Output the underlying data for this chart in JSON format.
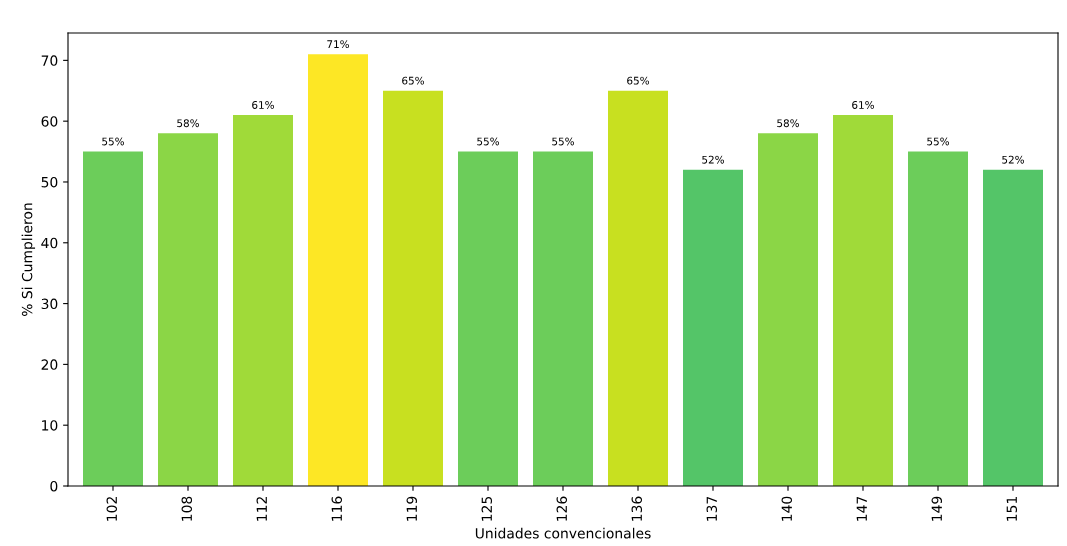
{
  "chart_data": {
    "type": "bar",
    "xlabel": "Unidades convencionales",
    "ylabel": "% Si Cumplieron",
    "categories": [
      "102",
      "108",
      "112",
      "116",
      "119",
      "125",
      "126",
      "136",
      "137",
      "140",
      "147",
      "149",
      "151"
    ],
    "values": [
      55,
      58,
      61,
      71,
      65,
      55,
      55,
      65,
      52,
      58,
      61,
      55,
      52
    ],
    "colors": [
      "#6ccd5a",
      "#8bd646",
      "#a0da39",
      "#fde725",
      "#c8e020",
      "#6ccd5a",
      "#6ccd5a",
      "#c8e020",
      "#54c568",
      "#8bd646",
      "#a0da39",
      "#6ccd5a",
      "#54c568"
    ],
    "value_labels": [
      "55%",
      "58%",
      "61%",
      "71%",
      "65%",
      "55%",
      "55%",
      "65%",
      "52%",
      "58%",
      "61%",
      "55%",
      "52%"
    ],
    "ylim": [
      0,
      74.5
    ],
    "yticks": [
      0,
      10,
      20,
      30,
      40,
      50,
      60,
      70
    ],
    "grid": false
  }
}
